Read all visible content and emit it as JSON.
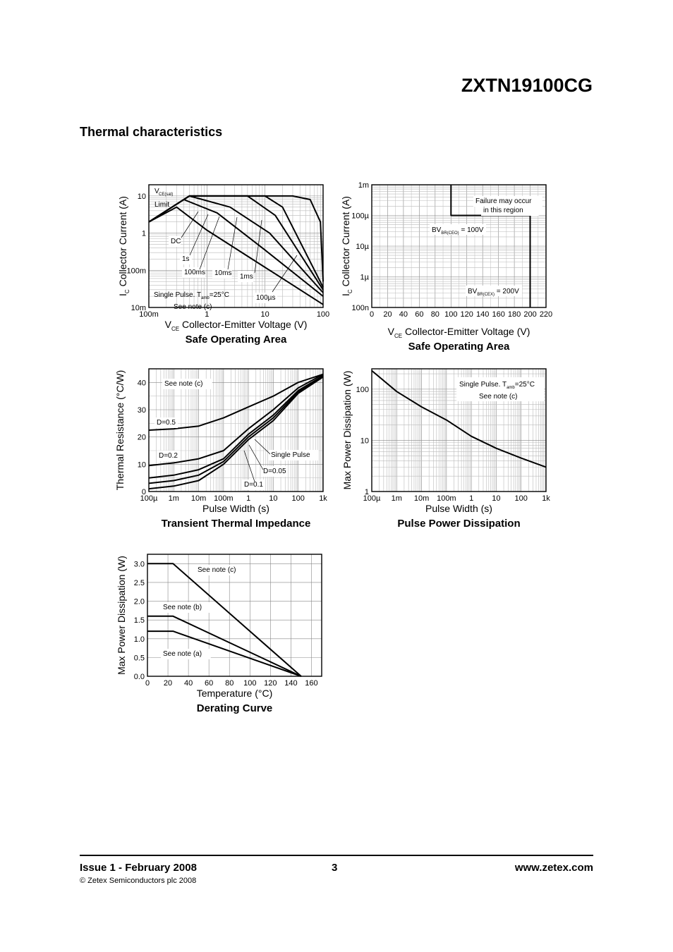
{
  "header": {
    "part_number": "ZXTN19100CG"
  },
  "section_title": "Thermal characteristics",
  "chart_data": [
    {
      "type": "line",
      "title": "Safe Operating Area",
      "xlabel": "V CE Collector-Emitter Voltage (V)",
      "ylabel": "I C Collector Current (A)",
      "x_scale": "log",
      "y_scale": "log",
      "xlim": [
        0.1,
        100
      ],
      "ylim": [
        0.01,
        20
      ],
      "x_ticks": [
        "100m",
        "1",
        "10",
        "100"
      ],
      "y_ticks": [
        "10m",
        "100m",
        "1",
        "10"
      ],
      "annotations": [
        "VCE(sat)",
        "Limit",
        "DC",
        "1s",
        "100ms",
        "10ms",
        "1ms",
        "100µs",
        "Single Pulse. Tamb=25°C",
        "See note (c)"
      ],
      "series": [
        {
          "name": "DC",
          "x": [
            0.1,
            0.3,
            1,
            10,
            100
          ],
          "y": [
            2,
            5,
            1.2,
            0.12,
            0.012
          ]
        },
        {
          "name": "1s",
          "x": [
            0.1,
            0.4,
            1.5,
            10,
            100
          ],
          "y": [
            2,
            8,
            3.5,
            0.35,
            0.02
          ]
        },
        {
          "name": "100ms",
          "x": [
            0.1,
            0.5,
            2.5,
            12,
            100
          ],
          "y": [
            2,
            10,
            5,
            1,
            0.025
          ]
        },
        {
          "name": "10ms",
          "x": [
            0.1,
            0.5,
            5,
            15,
            100
          ],
          "y": [
            2,
            10,
            10,
            3,
            0.03
          ]
        },
        {
          "name": "1ms",
          "x": [
            0.1,
            0.5,
            10,
            20,
            100
          ],
          "y": [
            2,
            10,
            10,
            5,
            0.035
          ]
        },
        {
          "name": "100µs",
          "x": [
            0.1,
            0.5,
            30,
            60,
            90,
            100
          ],
          "y": [
            2,
            10,
            10,
            8,
            2,
            0.05
          ]
        }
      ]
    },
    {
      "type": "line",
      "title": "Safe Operating Area",
      "xlabel": "V CE Collector-Emitter Voltage (V)",
      "ylabel": "I C Collector Current (A)",
      "x_scale": "linear",
      "y_scale": "log",
      "xlim": [
        0,
        220
      ],
      "ylim": [
        1e-07,
        0.001
      ],
      "x_ticks": [
        "0",
        "20",
        "40",
        "60",
        "80",
        "100",
        "120",
        "140",
        "160",
        "180",
        "200",
        "220"
      ],
      "y_ticks": [
        "100n",
        "1µ",
        "10µ",
        "100µ",
        "1m"
      ],
      "annotations": [
        "Failure may occur",
        "in this region",
        "BV BR(CEO) = 100V",
        "BV BR(CEX) = 200V"
      ],
      "series": [
        {
          "name": "",
          "x": [
            100,
            100,
            200,
            200
          ],
          "y": [
            0.001,
            0.0001,
            0.0001,
            1e-07
          ]
        }
      ]
    },
    {
      "type": "line",
      "title": "Transient Thermal Impedance",
      "xlabel": "Pulse Width (s)",
      "ylabel": "Thermal Resistance (°C/W)",
      "x_scale": "log",
      "y_scale": "linear",
      "xlim": [
        0.0001,
        1000
      ],
      "ylim": [
        0,
        45
      ],
      "x_ticks": [
        "100µ",
        "1m",
        "10m",
        "100m",
        "1",
        "10",
        "100",
        "1k"
      ],
      "y_ticks": [
        "0",
        "10",
        "20",
        "30",
        "40"
      ],
      "annotations": [
        "See note (c)",
        "D=0.5",
        "D=0.2",
        "Single Pulse",
        "D=0.05",
        "D=0.1"
      ],
      "series": [
        {
          "name": "D=0.5",
          "x": [
            0.0001,
            0.001,
            0.01,
            0.1,
            1,
            10,
            100,
            1000
          ],
          "y": [
            22.5,
            23,
            24,
            27,
            31,
            35,
            40,
            43
          ]
        },
        {
          "name": "D=0.2",
          "x": [
            0.0001,
            0.001,
            0.01,
            0.1,
            1,
            10,
            100,
            1000
          ],
          "y": [
            9.5,
            10.5,
            12,
            15,
            23,
            30,
            38,
            43
          ]
        },
        {
          "name": "D=0.1",
          "x": [
            0.0001,
            0.001,
            0.01,
            0.1,
            1,
            10,
            100,
            1000
          ],
          "y": [
            5,
            6,
            8,
            12,
            21,
            28,
            37,
            42.5
          ]
        },
        {
          "name": "D=0.05",
          "x": [
            0.0001,
            0.001,
            0.01,
            0.1,
            1,
            10,
            100,
            1000
          ],
          "y": [
            3,
            4,
            6,
            11,
            20,
            27,
            36.5,
            42.5
          ]
        },
        {
          "name": "Single Pulse",
          "x": [
            0.0001,
            0.001,
            0.01,
            0.1,
            1,
            10,
            100,
            1000
          ],
          "y": [
            1,
            2,
            4,
            10,
            19,
            26,
            36,
            42
          ]
        }
      ]
    },
    {
      "type": "line",
      "title": "Pulse Power Dissipation",
      "xlabel": "Pulse Width (s)",
      "ylabel": "Max Power Dissipation (W)",
      "x_scale": "log",
      "y_scale": "log",
      "xlim": [
        0.0001,
        1000
      ],
      "ylim": [
        1,
        250
      ],
      "x_ticks": [
        "100µ",
        "1m",
        "10m",
        "100m",
        "1",
        "10",
        "100",
        "1k"
      ],
      "y_ticks": [
        "1",
        "10",
        "100"
      ],
      "annotations": [
        "Single Pulse. Tamb=25°C",
        "See note (c)"
      ],
      "series": [
        {
          "name": "",
          "x": [
            0.0001,
            0.001,
            0.01,
            0.1,
            1,
            10,
            100,
            1000
          ],
          "y": [
            230,
            90,
            45,
            25,
            12,
            7,
            4.5,
            3
          ]
        }
      ]
    },
    {
      "type": "line",
      "title": "Derating Curve",
      "xlabel": "Temperature (°C)",
      "ylabel": "Max Power Dissipation (W)",
      "x_scale": "linear",
      "y_scale": "linear",
      "xlim": [
        0,
        170
      ],
      "ylim": [
        0,
        3.25
      ],
      "x_ticks": [
        "0",
        "20",
        "40",
        "60",
        "80",
        "100",
        "120",
        "140",
        "160"
      ],
      "y_ticks": [
        "0.0",
        "0.5",
        "1.0",
        "1.5",
        "2.0",
        "2.5",
        "3.0"
      ],
      "series": [
        {
          "name": "See note (c)",
          "x": [
            0,
            25,
            150
          ],
          "y": [
            3.0,
            3.0,
            0
          ]
        },
        {
          "name": "See note (b)",
          "x": [
            0,
            25,
            150
          ],
          "y": [
            1.6,
            1.6,
            0
          ]
        },
        {
          "name": "See note (a)",
          "x": [
            0,
            25,
            150
          ],
          "y": [
            1.2,
            1.2,
            0
          ]
        }
      ]
    }
  ],
  "footer": {
    "issue": "Issue 1 - February 2008",
    "page": "3",
    "website": "www.zetex.com",
    "copyright": "© Zetex Semiconductors plc 2008"
  }
}
